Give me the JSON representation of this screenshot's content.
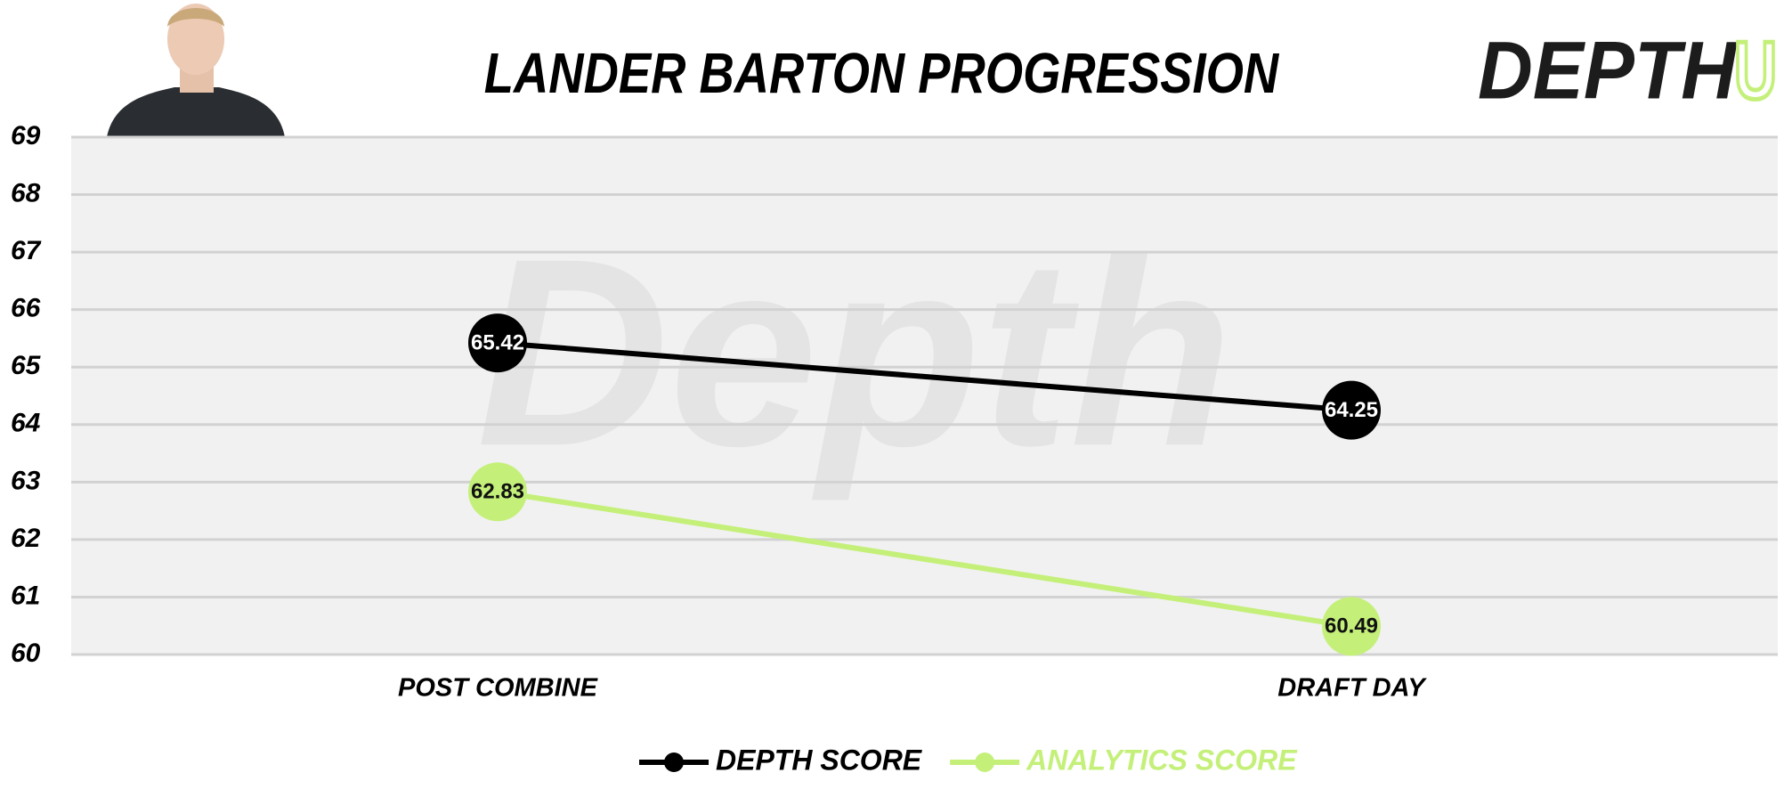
{
  "chart_data": {
    "type": "line",
    "title": "LANDER BARTON PROGRESSION",
    "logo": {
      "text": "DEPTH",
      "accent": "U"
    },
    "watermark": "Depth",
    "categories": [
      "POST COMBINE",
      "DRAFT DAY"
    ],
    "series": [
      {
        "name": "DEPTH SCORE",
        "color": "#000000",
        "values": [
          65.42,
          64.25
        ]
      },
      {
        "name": "ANALYTICS SCORE",
        "color": "#c4f07a",
        "values": [
          62.83,
          60.49
        ]
      }
    ],
    "ylim": [
      60,
      69
    ],
    "yticks": [
      60,
      61,
      62,
      63,
      64,
      65,
      66,
      67,
      68,
      69
    ],
    "grid": true
  }
}
